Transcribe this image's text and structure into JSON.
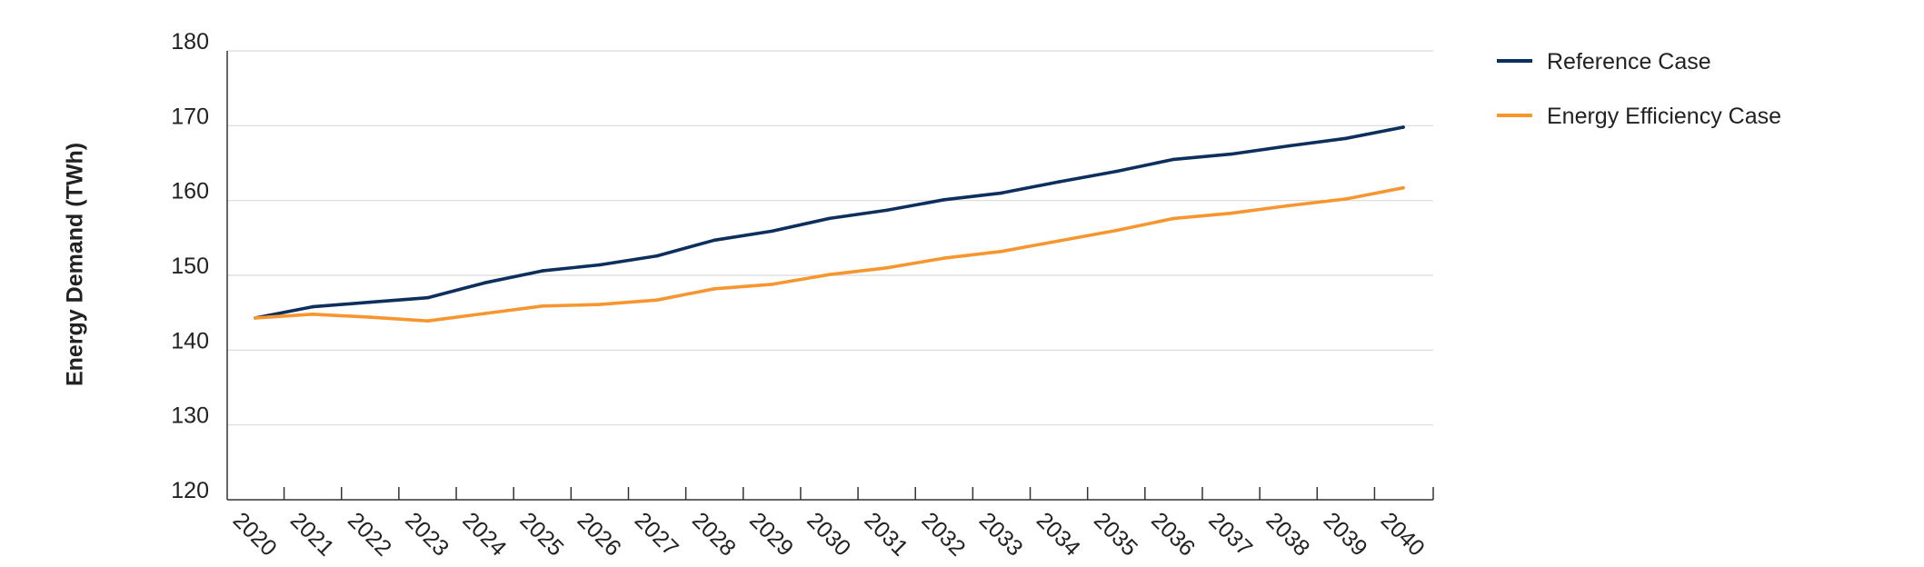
{
  "chart_data": {
    "type": "line",
    "title": "",
    "xlabel": "",
    "ylabel": "Energy Demand (TWh)",
    "x": [
      "2020",
      "2021",
      "2022",
      "2023",
      "2024",
      "2025",
      "2026",
      "2027",
      "2028",
      "2029",
      "2030",
      "2031",
      "2032",
      "2033",
      "2034",
      "2035",
      "2036",
      "2037",
      "2038",
      "2039",
      "2040"
    ],
    "ylim": [
      120,
      180
    ],
    "yticks": [
      120,
      130,
      140,
      150,
      160,
      170,
      180
    ],
    "grid": "horizontal",
    "legend": "right",
    "series": [
      {
        "name": "Reference Case",
        "color": "#0d2f5e",
        "values": [
          144.3,
          145.8,
          146.4,
          147.0,
          149.0,
          150.6,
          151.4,
          152.6,
          154.7,
          155.9,
          157.6,
          158.7,
          160.1,
          161.0,
          162.5,
          163.9,
          165.5,
          166.2,
          167.3,
          168.3,
          169.8
        ]
      },
      {
        "name": "Energy Efficiency Case",
        "color": "#f7962f",
        "values": [
          144.3,
          144.8,
          144.4,
          143.9,
          144.9,
          145.9,
          146.1,
          146.7,
          148.2,
          148.8,
          150.1,
          151.0,
          152.3,
          153.2,
          154.6,
          156.0,
          157.6,
          158.3,
          159.3,
          160.2,
          161.7
        ]
      }
    ]
  }
}
